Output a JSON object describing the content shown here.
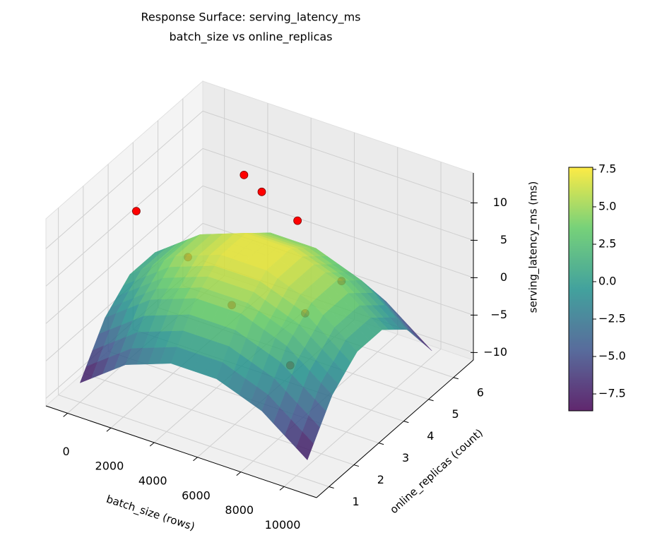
{
  "chart_data": {
    "type": "surface3d",
    "title": "Response Surface: serving_latency_ms",
    "subtitle": "batch_size vs online_replicas",
    "xlabel": "batch_size (rows)",
    "ylabel": "online_replicas (count)",
    "zlabel": "serving_latency_ms (ms)",
    "xlim": [
      -1000,
      11500
    ],
    "ylim": [
      0.5,
      6.8
    ],
    "zlim": [
      -11,
      14
    ],
    "xticks": [
      0,
      2000,
      4000,
      6000,
      8000,
      10000
    ],
    "yticks": [
      1,
      2,
      3,
      4,
      5,
      6
    ],
    "zticks": [
      {
        "value": -10,
        "label": "−10"
      },
      {
        "value": -5,
        "label": "−5"
      },
      0,
      5,
      10
    ],
    "surface": {
      "x": [
        0,
        2100,
        4200,
        6300,
        8400,
        10500
      ],
      "y": [
        1,
        2,
        3,
        4,
        5,
        6
      ],
      "z": [
        [
          -8.4,
          -3.92,
          -1.68,
          -1.68,
          -3.92,
          -8.4
        ],
        [
          -2.64,
          1.84,
          4.08,
          4.08,
          1.84,
          -2.64
        ],
        [
          0.24,
          4.72,
          6.96,
          6.96,
          4.72,
          0.24
        ],
        [
          0.24,
          4.72,
          6.96,
          6.96,
          4.72,
          0.24
        ],
        [
          -2.64,
          1.84,
          4.08,
          4.08,
          1.84,
          -2.64
        ],
        [
          -8.4,
          -3.92,
          -1.68,
          -1.68,
          -3.92,
          -8.4
        ]
      ]
    },
    "colormap": "viridis",
    "surface_alpha": 0.85,
    "clim": [
      -8.63,
      7.64
    ],
    "cticks": [
      {
        "value": -7.5,
        "label": "−7.5"
      },
      {
        "value": -5,
        "label": "−5.0"
      },
      {
        "value": -2.5,
        "label": "−2.5"
      },
      {
        "value": 0,
        "label": "0.0"
      },
      2.5,
      {
        "value": 5,
        "label": "5.0"
      },
      7.5
    ],
    "points": {
      "color": "red",
      "x": [
        300,
        2400,
        4600,
        7000,
        500,
        5400,
        8100,
        8100,
        6100
      ],
      "y": [
        3.0,
        5.5,
        4.3,
        3.65,
        4.9,
        2.4,
        3.0,
        2.4,
        6.2
      ],
      "z": [
        9,
        8.6,
        12,
        12.4,
        -2.5,
        3.2,
        3.0,
        -2.2,
        -4
      ]
    }
  }
}
